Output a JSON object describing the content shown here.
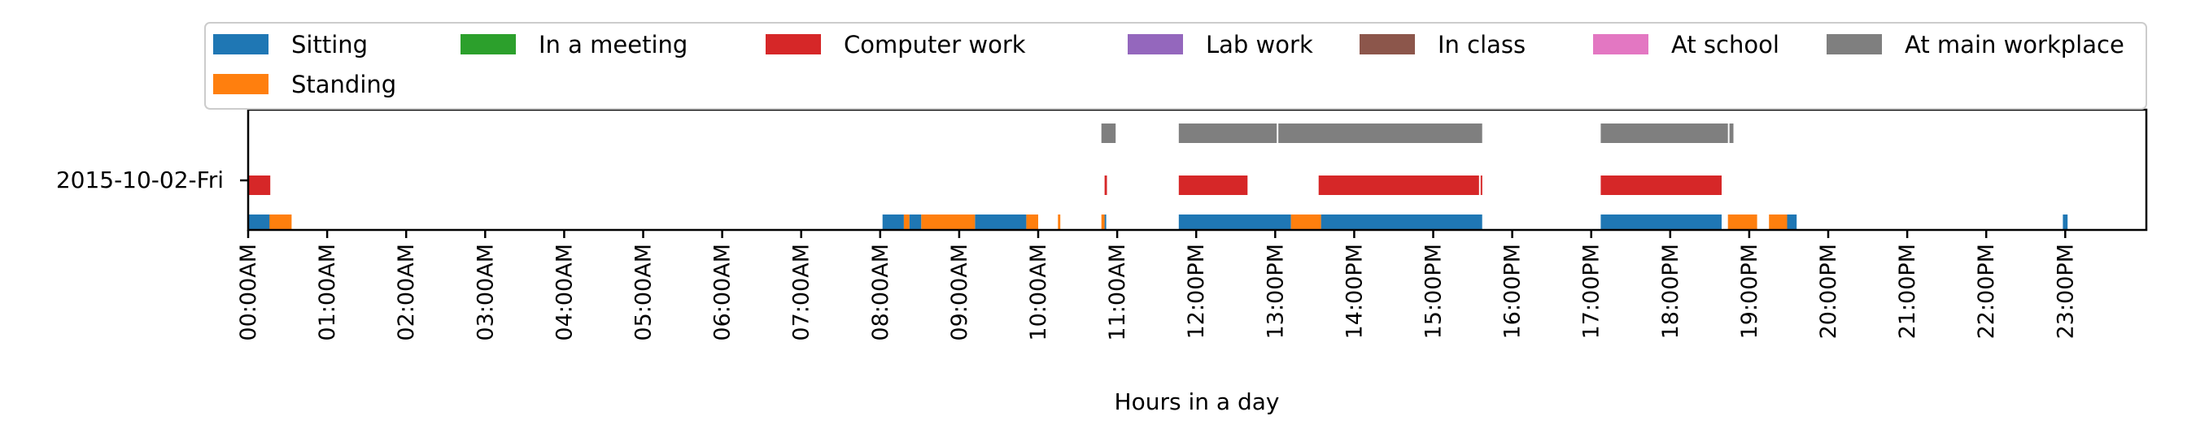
{
  "chart_data": {
    "type": "timeline",
    "title": "",
    "xlabel": "Hours in a day",
    "ylabel": "",
    "date_label": "2015-10-02-Fri",
    "xlim": [
      0,
      24
    ],
    "x_tick_labels": [
      "00:00AM",
      "01:00AM",
      "02:00AM",
      "03:00AM",
      "04:00AM",
      "05:00AM",
      "06:00AM",
      "07:00AM",
      "08:00AM",
      "09:00AM",
      "10:00AM",
      "11:00AM",
      "12:00PM",
      "13:00PM",
      "14:00PM",
      "15:00PM",
      "16:00PM",
      "17:00PM",
      "18:00PM",
      "19:00PM",
      "20:00PM",
      "21:00PM",
      "22:00PM",
      "23:00PM"
    ],
    "legend_position": "top",
    "legend": [
      {
        "name": "Sitting",
        "color": "#1f77b4"
      },
      {
        "name": "In a meeting",
        "color": "#2ca02c"
      },
      {
        "name": "Computer work",
        "color": "#d62728"
      },
      {
        "name": "Lab work",
        "color": "#9467bd"
      },
      {
        "name": "In class",
        "color": "#8c564b"
      },
      {
        "name": "At school",
        "color": "#e377c2"
      },
      {
        "name": "At main workplace",
        "color": "#7f7f7f"
      },
      {
        "name": "Standing",
        "color": "#ff7f0e"
      }
    ],
    "series": [
      {
        "name": "Sitting",
        "lane": "posture",
        "color": "#1f77b4",
        "intervals": [
          [
            0.0,
            0.28
          ],
          [
            8.03,
            8.3
          ],
          [
            8.37,
            8.52
          ],
          [
            9.2,
            9.85
          ],
          [
            10.84,
            10.86
          ],
          [
            11.78,
            13.2
          ],
          [
            13.58,
            15.62
          ],
          [
            17.12,
            18.65
          ],
          [
            19.48,
            19.6
          ],
          [
            22.97,
            23.03
          ]
        ]
      },
      {
        "name": "Standing",
        "lane": "posture",
        "color": "#ff7f0e",
        "intervals": [
          [
            0.27,
            0.55
          ],
          [
            8.3,
            8.37
          ],
          [
            8.52,
            9.2
          ],
          [
            9.85,
            10.0
          ],
          [
            10.25,
            10.28
          ],
          [
            10.8,
            10.84
          ],
          [
            13.2,
            13.58
          ],
          [
            18.73,
            19.1
          ],
          [
            19.25,
            19.48
          ]
        ]
      },
      {
        "name": "Computer work",
        "lane": "activity",
        "color": "#d62728",
        "intervals": [
          [
            0.0,
            0.28
          ],
          [
            10.84,
            10.87
          ],
          [
            11.78,
            12.65
          ],
          [
            13.55,
            15.58
          ],
          [
            15.6,
            15.62
          ],
          [
            17.12,
            18.65
          ]
        ]
      },
      {
        "name": "At main workplace",
        "lane": "location",
        "color": "#7f7f7f",
        "intervals": [
          [
            10.8,
            10.98
          ],
          [
            11.78,
            13.02
          ],
          [
            13.04,
            15.62
          ],
          [
            17.12,
            18.73
          ],
          [
            18.75,
            18.8
          ]
        ]
      }
    ]
  }
}
